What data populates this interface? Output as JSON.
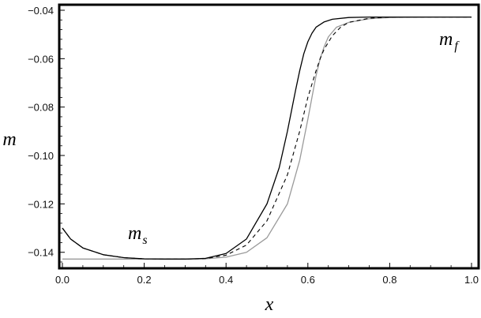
{
  "chart_data": {
    "type": "line",
    "xlabel": "x",
    "ylabel": "m",
    "xlim": [
      0.0,
      1.0
    ],
    "ylim": [
      -0.144,
      -0.04
    ],
    "x_ticks": [
      "0.0",
      "0.2",
      "0.4",
      "0.6",
      "0.8",
      "1.0"
    ],
    "y_ticks": [
      "−0.04",
      "−0.06",
      "−0.08",
      "−0.10",
      "−0.12",
      "−0.14"
    ],
    "x_tick_values": [
      0.0,
      0.2,
      0.4,
      0.6,
      0.8,
      1.0
    ],
    "y_tick_values": [
      -0.04,
      -0.06,
      -0.08,
      -0.1,
      -0.12,
      -0.14
    ],
    "grid": false,
    "annotations": {
      "fast_main": "m",
      "fast_sub": "f",
      "slow_main": "m",
      "slow_sub": "s"
    },
    "series": [
      {
        "style": "solid-black",
        "color": "#000000",
        "x": [
          0.0,
          0.02,
          0.05,
          0.1,
          0.15,
          0.2,
          0.25,
          0.3,
          0.35,
          0.4,
          0.45,
          0.5,
          0.53,
          0.55,
          0.57,
          0.58,
          0.59,
          0.6,
          0.61,
          0.62,
          0.64,
          0.66,
          0.7,
          0.75,
          0.8,
          0.9,
          1.0
        ],
        "y": [
          -0.13,
          -0.1345,
          -0.1382,
          -0.141,
          -0.1422,
          -0.1427,
          -0.1428,
          -0.1428,
          -0.1425,
          -0.1405,
          -0.1345,
          -0.12,
          -0.105,
          -0.09,
          -0.073,
          -0.065,
          -0.058,
          -0.053,
          -0.0495,
          -0.047,
          -0.0448,
          -0.0437,
          -0.043,
          -0.0428,
          -0.0428,
          -0.0428,
          -0.0428
        ]
      },
      {
        "style": "dashed-black",
        "color": "#000000",
        "x": [
          0.0,
          0.02,
          0.05,
          0.1,
          0.15,
          0.2,
          0.25,
          0.3,
          0.35,
          0.4,
          0.45,
          0.5,
          0.55,
          0.58,
          0.6,
          0.62,
          0.63,
          0.64,
          0.66,
          0.68,
          0.7,
          0.75,
          0.8,
          0.9,
          1.0
        ],
        "y": [
          -0.13,
          -0.1345,
          -0.1382,
          -0.141,
          -0.1422,
          -0.1427,
          -0.1428,
          -0.1428,
          -0.1426,
          -0.1412,
          -0.137,
          -0.127,
          -0.108,
          -0.09,
          -0.076,
          -0.065,
          -0.06,
          -0.056,
          -0.0505,
          -0.047,
          -0.045,
          -0.0433,
          -0.0428,
          -0.0428,
          -0.0428
        ]
      },
      {
        "style": "solid-gray",
        "color": "#9a9a9a",
        "x": [
          0.0,
          0.1,
          0.2,
          0.3,
          0.35,
          0.4,
          0.45,
          0.5,
          0.55,
          0.58,
          0.6,
          0.61,
          0.62,
          0.63,
          0.64,
          0.65,
          0.67,
          0.7,
          0.75,
          0.8,
          0.9,
          1.0
        ],
        "y": [
          -0.1428,
          -0.1428,
          -0.1428,
          -0.1428,
          -0.1427,
          -0.142,
          -0.14,
          -0.134,
          -0.12,
          -0.102,
          -0.085,
          -0.076,
          -0.067,
          -0.06,
          -0.055,
          -0.051,
          -0.047,
          -0.045,
          -0.0435,
          -0.043,
          -0.0428,
          -0.0428
        ]
      }
    ]
  }
}
